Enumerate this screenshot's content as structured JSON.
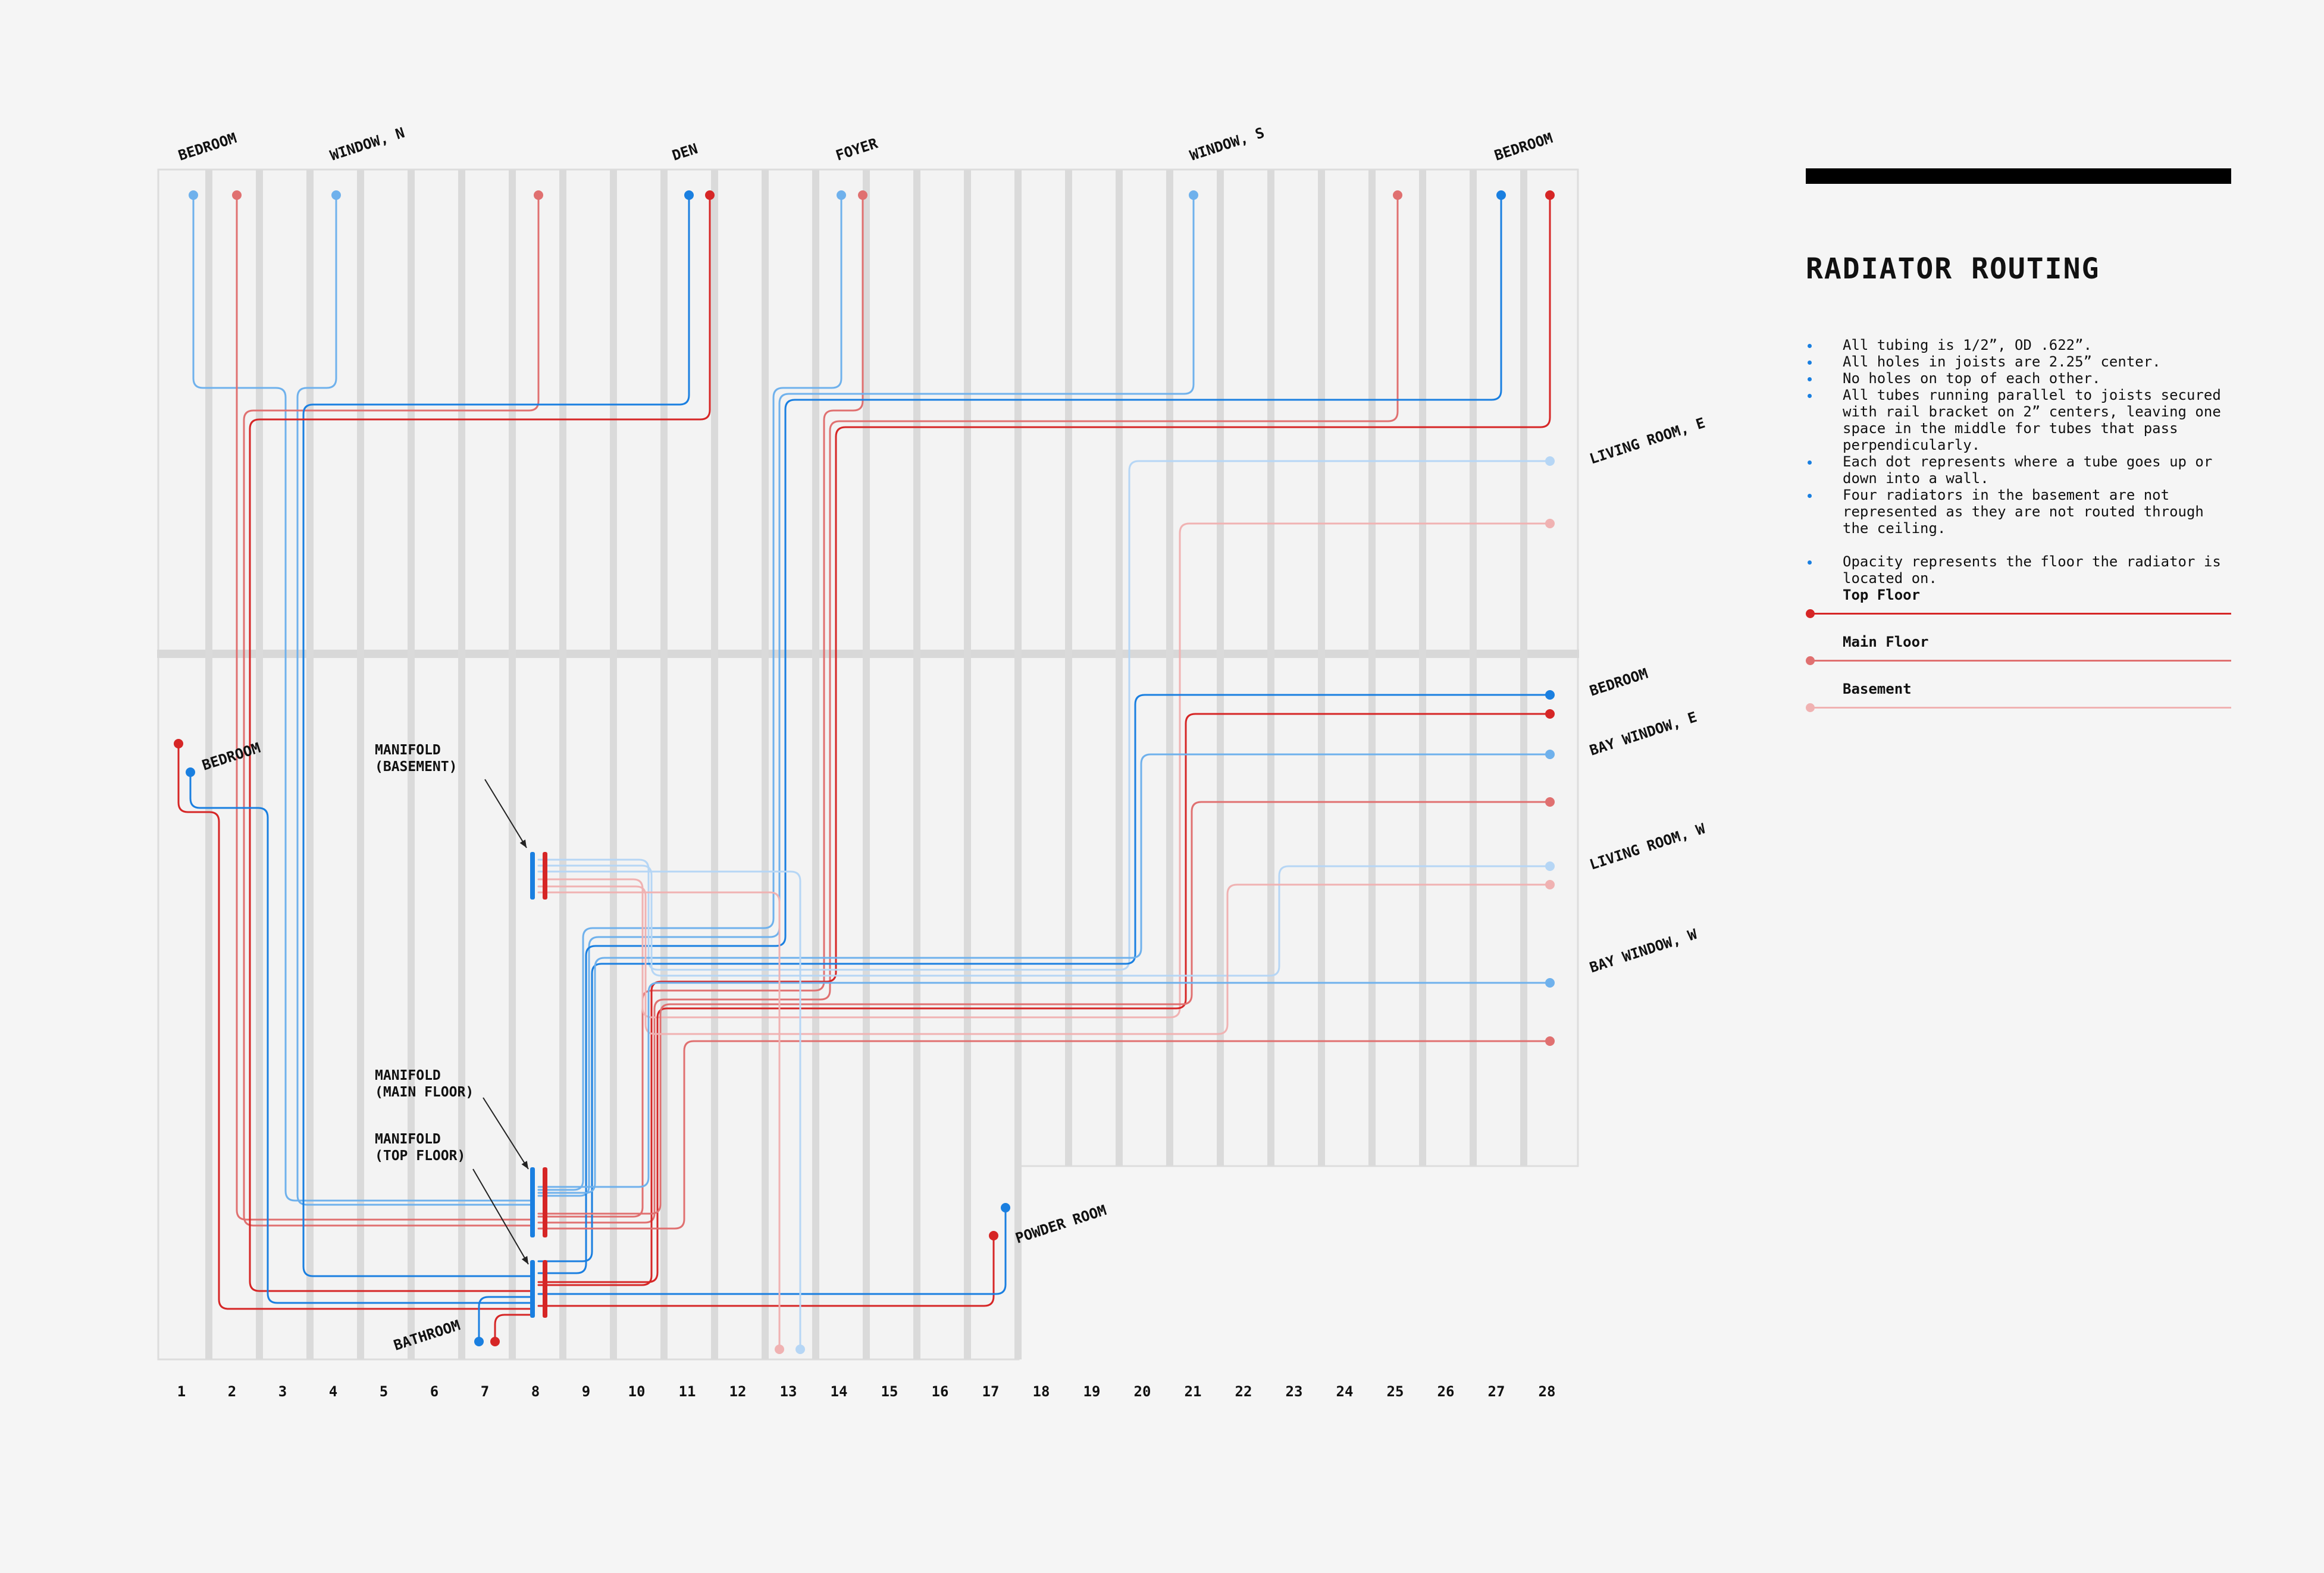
{
  "legend": {
    "title": "RADIATOR ROUTING",
    "notes": [
      "All tubing is 1/2”, OD .622”.",
      "All holes in joists are 2.25” center.",
      "No holes on top of each other.",
      "All tubes running parallel to joists secured with rail bracket on 2” centers, leaving one space in the middle for tubes that pass perpendicularly.",
      "Each dot represents where a tube goes up or down into a wall.",
      "Four radiators in the basement are not represented as they are not routed through the ceiling.",
      "Opacity represents the floor the radiator is located on."
    ],
    "keys": [
      {
        "label": "Top Floor",
        "color": "#d62626"
      },
      {
        "label": "Main Floor",
        "color": "#e07070"
      },
      {
        "label": "Basement",
        "color": "#f0b2b2"
      }
    ]
  },
  "colors": {
    "red_top": "#d62626",
    "red_main": "#e07070",
    "red_base": "#f0b2b2",
    "blue_top": "#1a7fe0",
    "blue_main": "#6fb1ec",
    "blue_base": "#b6d6f5"
  },
  "joist_numbers": [
    "1",
    "2",
    "3",
    "4",
    "5",
    "6",
    "7",
    "8",
    "9",
    "10",
    "11",
    "12",
    "13",
    "14",
    "15",
    "16",
    "17",
    "18",
    "19",
    "20",
    "21",
    "22",
    "23",
    "24",
    "25",
    "26",
    "27",
    "28"
  ],
  "room_labels": {
    "bedroom_nw": "BEDROOM",
    "window_n": "WINDOW, N",
    "den": "DEN",
    "foyer": "FOYER",
    "window_s": "WINDOW, S",
    "bedroom_ne": "BEDROOM",
    "living_room_e": "LIVING ROOM, E",
    "bedroom_e": "BEDROOM",
    "bay_window_e": "BAY WINDOW, E",
    "living_room_w": "LIVING ROOM, W",
    "bay_window_w": "BAY WINDOW, W",
    "bedroom_w": "BEDROOM",
    "powder_room": "POWDER ROOM",
    "bathroom": "BATHROOM"
  },
  "manifolds": {
    "basement": [
      "MANIFOLD",
      "(BASEMENT)"
    ],
    "main_floor": [
      "MANIFOLD",
      "(MAIN FLOOR)"
    ],
    "top_floor": [
      "MANIFOLD",
      "(TOP FLOOR)"
    ]
  }
}
